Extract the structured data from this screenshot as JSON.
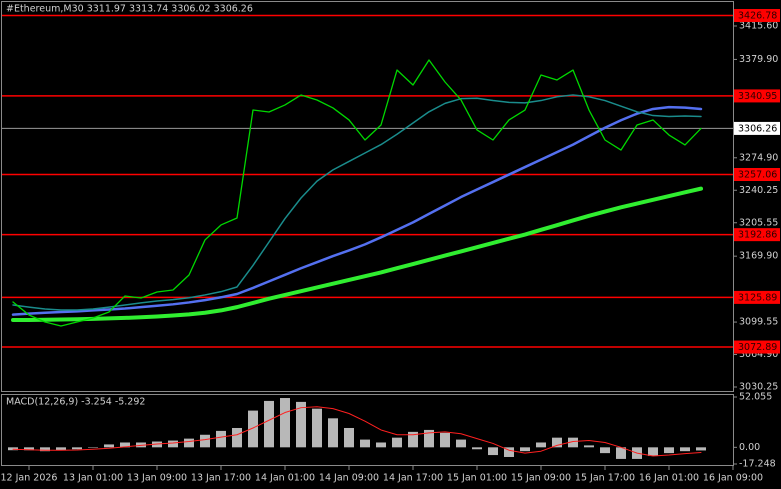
{
  "chart_data": [
    {
      "type": "line",
      "title": "#Ethereum,M30  3311.97 3313.74 3306.02 3306.26",
      "categories": [
        null,
        "12 Jan 2026",
        null,
        null,
        null,
        "13 Jan 01:00",
        null,
        null,
        null,
        "13 Jan 09:00",
        null,
        null,
        null,
        "13 Jan 17:00",
        null,
        null,
        null,
        "14 Jan 01:00",
        null,
        null,
        null,
        "14 Jan 09:00",
        null,
        null,
        null,
        "14 Jan 17:00",
        null,
        null,
        null,
        "15 Jan 01:00",
        null,
        null,
        null,
        "15 Jan 09:00",
        null,
        null,
        null,
        "15 Jan 17:00",
        null,
        null,
        null,
        "16 Jan 01:00",
        null,
        null,
        null,
        "16 Jan 09:00"
      ],
      "series": [
        {
          "color": "#30ee30",
          "values": [
            3101.8,
            3101.8,
            3102.0,
            3102.3,
            3102.6,
            3103.0,
            3103.5,
            3104.0,
            3104.7,
            3105.5,
            3106.5,
            3107.8,
            3109.5,
            3112.0,
            3115.5,
            3120.0,
            3124.5,
            3128.5,
            3132.5,
            3136.5,
            3140.5,
            3144.5,
            3148.5,
            3152.5,
            3157.0,
            3161.5,
            3166.0,
            3170.5,
            3175.0,
            3179.5,
            3184.0,
            3188.5,
            3193.0,
            3198.0,
            3203.0,
            3208.0,
            3213.0,
            3217.5,
            3222.0,
            3226.0,
            3230.0,
            3234.0,
            3238.0,
            3242.0,
            null,
            null
          ]
        },
        {
          "color": "#5470f0",
          "values": [
            3107.5,
            3108.5,
            3109.5,
            3110.3,
            3111.0,
            3112.0,
            3113.0,
            3114.0,
            3115.5,
            3117.0,
            3118.5,
            3120.5,
            3123.0,
            3126.0,
            3129.5,
            3136.0,
            3143.0,
            3150.0,
            3157.0,
            3163.5,
            3170.0,
            3176.0,
            3182.5,
            3190.0,
            3198.0,
            3206.0,
            3215.0,
            3224.0,
            3233.0,
            3241.0,
            3249.0,
            3257.0,
            3265.0,
            3273.0,
            3281.0,
            3289.0,
            3298.0,
            3307.0,
            3315.0,
            3322.0,
            3327.0,
            3329.0,
            3328.5,
            3327.0,
            null,
            null
          ]
        },
        {
          "color": "#1a8c8c",
          "values": [
            3117.8,
            3115.5,
            3113.5,
            3112.4,
            3112.4,
            3113.5,
            3115.5,
            3117.8,
            3120.0,
            3122.0,
            3123.5,
            3125.5,
            3128.5,
            3132.0,
            3137.0,
            3160.0,
            3185.0,
            3210.0,
            3232.0,
            3250.0,
            3262.0,
            3271.0,
            3280.0,
            3289.0,
            3300.0,
            3312.0,
            3324.0,
            3333.0,
            3338.0,
            3338.5,
            3336.0,
            3334.0,
            3333.5,
            3336.0,
            3340.0,
            3342.0,
            3340.0,
            3336.0,
            3330.0,
            3324.0,
            3320.0,
            3319.0,
            3319.5,
            3319.0,
            null,
            null
          ]
        },
        {
          "color": "#00d800",
          "values": [
            3121.0,
            3107.1,
            3099.6,
            3095.3,
            3099.6,
            3103.9,
            3110.3,
            3127.4,
            3125.2,
            3131.6,
            3133.8,
            3149.8,
            3187.2,
            3203.2,
            3210.6,
            3325.9,
            3323.8,
            3331.3,
            3341.9,
            3336.6,
            3328.1,
            3315.3,
            3293.9,
            3309.9,
            3368.6,
            3352.6,
            3379.3,
            3355.8,
            3336.6,
            3304.6,
            3293.9,
            3315.3,
            3325.9,
            3363.3,
            3358.0,
            3368.6,
            3325.9,
            3293.9,
            3283.2,
            3309.9,
            3315.3,
            3299.2,
            3288.6,
            3306.26,
            null,
            null
          ]
        }
      ],
      "levels": {
        "color": "#ff0000",
        "values": [
          3426.78,
          3340.95,
          3257.06,
          3192.86,
          3125.89,
          3072.89
        ]
      },
      "last_price": 3306.26,
      "ylim": [
        3024.9,
        3441.2
      ],
      "yticks": [
        {
          "value": 3415.6,
          "label": "3415.60"
        },
        {
          "value": 3379.9,
          "label": "3379.90"
        },
        {
          "value": 3274.9,
          "label": "3274.90"
        },
        3240.25,
        3205.55,
        {
          "value": 3169.9,
          "label": "3169.90"
        },
        3099.55,
        {
          "value": 3064.9,
          "label": "3064.90"
        },
        3030.25
      ]
    },
    {
      "type": "bar",
      "title": "MACD(12,26,9) -3.254 -5.292",
      "color": "#b8b8b8",
      "values": [
        -3,
        -3,
        -4,
        -3,
        -2,
        0,
        3,
        5,
        5,
        6,
        7,
        9,
        13,
        17,
        20,
        38,
        48,
        51,
        47,
        40,
        30,
        20,
        8,
        5,
        10,
        16,
        18,
        15,
        8,
        -2,
        -8,
        -10,
        -4,
        5,
        10,
        10,
        2,
        -6,
        -12,
        -12,
        -9,
        -6,
        -4,
        -3.254
      ],
      "series": [
        {
          "color": "#ff2020",
          "values": [
            -2,
            -2.5,
            -3,
            -3,
            -2.8,
            -2,
            -1,
            0.5,
            2,
            3.5,
            4.5,
            6,
            8,
            10.5,
            13,
            20,
            28,
            36,
            41,
            42,
            40,
            35,
            27,
            18,
            13,
            13,
            15,
            16,
            14,
            9,
            4,
            -3,
            -6,
            -4,
            2,
            6,
            7,
            5,
            0,
            -6,
            -9,
            -8,
            -6.5,
            -5.292
          ]
        }
      ],
      "ylim": [
        -17.248,
        52.055
      ],
      "yticks": [
        52.055,
        {
          "value": 0,
          "label": "0.00"
        },
        -17.248
      ]
    }
  ]
}
